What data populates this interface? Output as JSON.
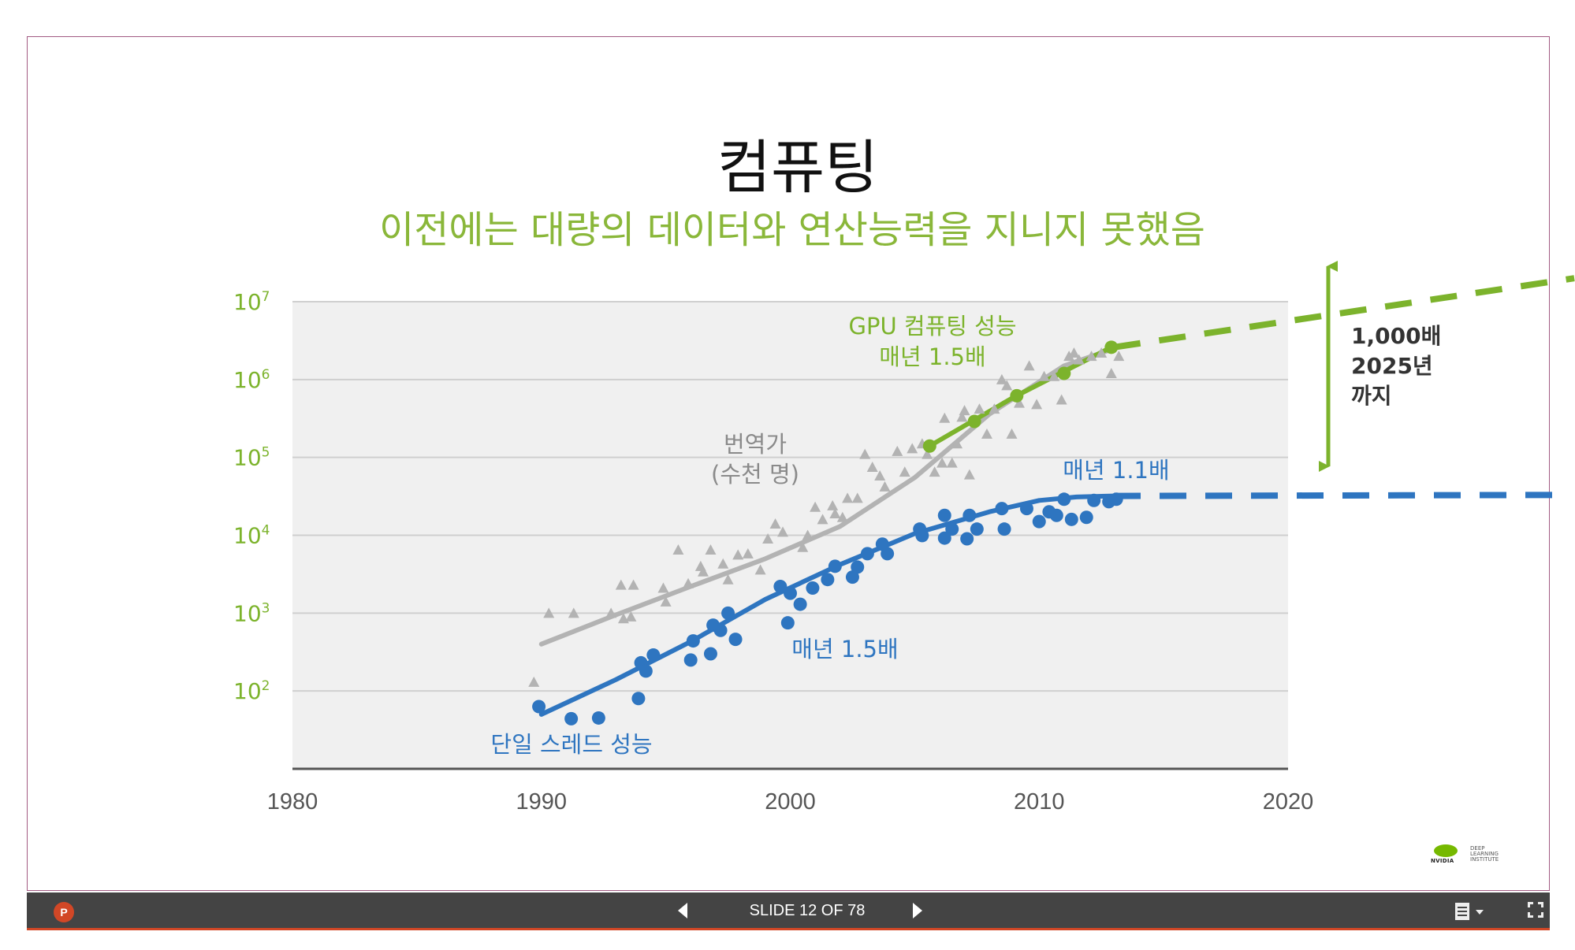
{
  "slide": {
    "title": "컴퓨팅",
    "subtitle": "이전에는 대량의 데이터와 연산능력을 지니지 못했음"
  },
  "chart_data": {
    "type": "scatter",
    "y_scale": "log",
    "ylim": [
      10,
      10000000
    ],
    "xlim": [
      1980,
      2020
    ],
    "x_ticks": [
      "1980",
      "1990",
      "2000",
      "2010",
      "2020"
    ],
    "y_ticks": [
      {
        "value": 100,
        "base": "10",
        "exp": "2"
      },
      {
        "value": 1000,
        "base": "10",
        "exp": "3"
      },
      {
        "value": 10000,
        "base": "10",
        "exp": "4"
      },
      {
        "value": 100000,
        "base": "10",
        "exp": "5"
      },
      {
        "value": 1000000,
        "base": "10",
        "exp": "6"
      },
      {
        "value": 10000000,
        "base": "10",
        "exp": "7"
      }
    ],
    "grid": true,
    "colors": {
      "transistors": "#b3b3b3",
      "single_thread": "#2e75c0",
      "gpu": "#7cb32c",
      "tick_label": "#7cb32c",
      "axis": "#555555"
    },
    "annotations": {
      "transistors_line1": "번역가",
      "transistors_line2": "(수천 명)",
      "single_thread_label": "단일 스레드 성능",
      "single_thread_rate": "매년 1.5배",
      "single_thread_rate_later": "매년 1.1배",
      "gpu_line1": "GPU 컴퓨팅 성능",
      "gpu_line2": "매년 1.5배",
      "gap_line1": "1,000배",
      "gap_line2": "2025년",
      "gap_line3": "까지"
    },
    "series": [
      {
        "marker": "triangle",
        "color": "#b3b3b3",
        "points": [
          [
            1989.7,
            130
          ],
          [
            1990.3,
            1000
          ],
          [
            1991.3,
            1000
          ],
          [
            1992.8,
            1000
          ],
          [
            1993.2,
            2300
          ],
          [
            1993.7,
            2300
          ],
          [
            1993.6,
            900
          ],
          [
            1993.3,
            850
          ],
          [
            1994.9,
            2100
          ],
          [
            1995.0,
            1400
          ],
          [
            1995.5,
            6500
          ],
          [
            1995.9,
            2400
          ],
          [
            1996.4,
            4000
          ],
          [
            1996.5,
            3400
          ],
          [
            1996.8,
            6500
          ],
          [
            1997.3,
            4300
          ],
          [
            1997.5,
            2700
          ],
          [
            1997.9,
            5600
          ],
          [
            1998.3,
            5800
          ],
          [
            1998.8,
            3600
          ],
          [
            1999.1,
            9000
          ],
          [
            1999.4,
            14000
          ],
          [
            1999.7,
            11000
          ],
          [
            2000.5,
            7000
          ],
          [
            2000.7,
            10000
          ],
          [
            2001.0,
            23000
          ],
          [
            2001.3,
            16000
          ],
          [
            2001.7,
            24000
          ],
          [
            2001.8,
            19000
          ],
          [
            2002.1,
            17000
          ],
          [
            2002.3,
            30000
          ],
          [
            2002.7,
            30000
          ],
          [
            2003.0,
            110000
          ],
          [
            2003.3,
            75000
          ],
          [
            2003.6,
            58000
          ],
          [
            2003.8,
            42000
          ],
          [
            2004.3,
            120000
          ],
          [
            2004.6,
            65000
          ],
          [
            2004.9,
            130000
          ],
          [
            2005.3,
            150000
          ],
          [
            2005.5,
            110000
          ],
          [
            2005.8,
            65000
          ],
          [
            2006.1,
            85000
          ],
          [
            2006.2,
            320000
          ],
          [
            2006.5,
            85000
          ],
          [
            2006.7,
            150000
          ],
          [
            2006.9,
            330000
          ],
          [
            2007.0,
            400000
          ],
          [
            2007.2,
            60000
          ],
          [
            2007.6,
            420000
          ],
          [
            2007.9,
            200000
          ],
          [
            2008.2,
            420000
          ],
          [
            2008.5,
            1000000
          ],
          [
            2008.7,
            840000
          ],
          [
            2008.9,
            200000
          ],
          [
            2009.2,
            500000
          ],
          [
            2009.6,
            1500000
          ],
          [
            2009.9,
            480000
          ],
          [
            2010.2,
            1100000
          ],
          [
            2010.6,
            1100000
          ],
          [
            2010.9,
            550000
          ],
          [
            2011.2,
            2000000
          ],
          [
            2011.4,
            2200000
          ],
          [
            2011.6,
            1800000
          ],
          [
            2012.1,
            2000000
          ],
          [
            2012.5,
            2200000
          ],
          [
            2012.9,
            1200000
          ],
          [
            2013.2,
            2000000
          ]
        ]
      },
      {
        "marker": "circle",
        "color": "#2e75c0",
        "points": [
          [
            1989.9,
            63
          ],
          [
            1991.2,
            44
          ],
          [
            1992.3,
            45
          ],
          [
            1993.9,
            80
          ],
          [
            1994.0,
            230
          ],
          [
            1994.2,
            180
          ],
          [
            1994.5,
            290
          ],
          [
            1996.0,
            250
          ],
          [
            1996.1,
            440
          ],
          [
            1996.8,
            300
          ],
          [
            1996.9,
            700
          ],
          [
            1997.2,
            600
          ],
          [
            1997.5,
            1000
          ],
          [
            1997.8,
            460
          ],
          [
            1999.6,
            2200
          ],
          [
            1999.9,
            750
          ],
          [
            2000.0,
            1800
          ],
          [
            2000.4,
            1300
          ],
          [
            2000.9,
            2100
          ],
          [
            2001.5,
            2700
          ],
          [
            2001.8,
            4000
          ],
          [
            2002.5,
            2900
          ],
          [
            2002.7,
            3900
          ],
          [
            2003.1,
            5800
          ],
          [
            2003.7,
            7700
          ],
          [
            2003.9,
            5800
          ],
          [
            2005.2,
            12000
          ],
          [
            2005.3,
            9900
          ],
          [
            2006.2,
            18000
          ],
          [
            2006.2,
            9200
          ],
          [
            2006.5,
            12000
          ],
          [
            2007.1,
            9000
          ],
          [
            2007.2,
            18000
          ],
          [
            2007.5,
            12000
          ],
          [
            2008.5,
            22000
          ],
          [
            2008.6,
            12000
          ],
          [
            2009.5,
            22000
          ],
          [
            2010.0,
            15000
          ],
          [
            2010.4,
            20000
          ],
          [
            2010.7,
            18000
          ],
          [
            2011.0,
            29000
          ],
          [
            2011.3,
            16000
          ],
          [
            2011.9,
            17000
          ],
          [
            2012.2,
            28000
          ],
          [
            2012.8,
            27000
          ],
          [
            2013.1,
            29000
          ]
        ]
      },
      {
        "marker": "circle",
        "color": "#7cb32c",
        "points": [
          [
            2005.6,
            140000
          ],
          [
            2007.4,
            290000
          ],
          [
            2009.1,
            620000
          ],
          [
            2011.0,
            1200000
          ],
          [
            2012.9,
            2600000
          ]
        ]
      }
    ],
    "trend_lines": [
      {
        "color": "#b3b3b3",
        "points": [
          [
            1990,
            400
          ],
          [
            1993,
            950
          ],
          [
            1996,
            2200
          ],
          [
            1999,
            5000
          ],
          [
            2002,
            13000
          ],
          [
            2005,
            55000
          ],
          [
            2008,
            360000
          ],
          [
            2011,
            1500000
          ],
          [
            2013,
            2500000
          ]
        ]
      },
      {
        "color": "#2e75c0",
        "points": [
          [
            1990,
            50
          ],
          [
            1993,
            140
          ],
          [
            1996,
            430
          ],
          [
            1999,
            1500
          ],
          [
            2002,
            4200
          ],
          [
            2005,
            10500
          ],
          [
            2008,
            20000
          ],
          [
            2010,
            28000
          ],
          [
            2011.5,
            31000
          ],
          [
            2013,
            32000
          ]
        ]
      },
      {
        "color": "#7cb32c",
        "points": [
          [
            2005.6,
            140000
          ],
          [
            2009,
            600000
          ],
          [
            2012.9,
            2600000
          ]
        ]
      }
    ],
    "projection_lines": [
      {
        "color": "#7cb32c",
        "points": [
          [
            2013,
            2600000
          ],
          [
            2031.5,
            20000000
          ]
        ]
      },
      {
        "color": "#2e75c0",
        "points": [
          [
            2013,
            32000
          ],
          [
            2031.3,
            33000
          ]
        ]
      }
    ]
  },
  "toolbar": {
    "app_icon": "P",
    "slide_counter": "SLIDE 12 OF 78"
  },
  "logo": {
    "brand": "NVIDIA",
    "sub": [
      "DEEP",
      "LEARNING",
      "INSTITUTE"
    ]
  },
  "icons": [
    "powerpoint-icon",
    "prev-slide-icon",
    "next-slide-icon",
    "notes-icon",
    "fit-screen-icon"
  ]
}
